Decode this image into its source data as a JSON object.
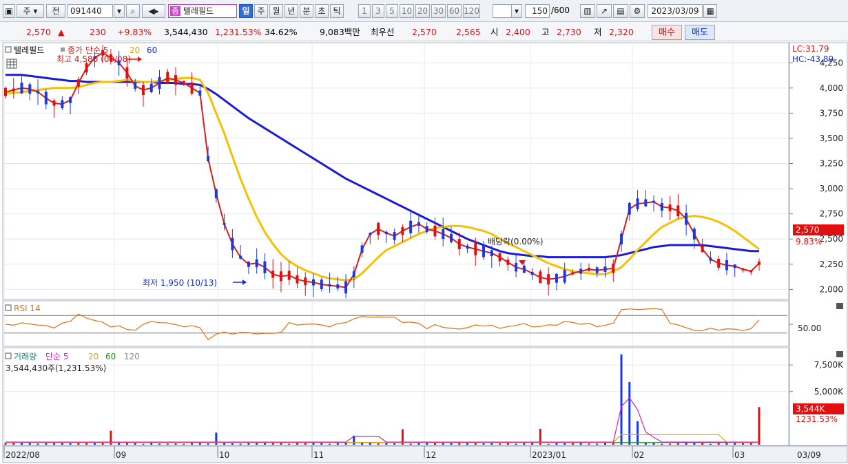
{
  "toolbar": {
    "period_label": "주",
    "period_caret": "▾",
    "ticker_prefix": "전",
    "ticker_code": "091440",
    "stock_badge": "종",
    "stock_name": "텔레필드",
    "timeframes": [
      "일",
      "주",
      "월",
      "년",
      "분",
      "초",
      "틱"
    ],
    "intervals": [
      "1",
      "3",
      "5",
      "10",
      "20",
      "30",
      "60",
      "120"
    ],
    "count_value": "150",
    "count_total": "/600",
    "date_value": "2023/03/09"
  },
  "quote": {
    "price": "2,570",
    "direction_arrow": "▲",
    "change": "230",
    "change_pct": "+9.83%",
    "volume": "3,544,430",
    "volume_ratio": "1,231.53%",
    "turnover_pct": "34.62%",
    "amount": "9,083백만",
    "best_bid_label": "최우선",
    "best_ask": "2,570",
    "best_bid": "2,565",
    "open_label": "시",
    "open": "2,400",
    "high_label": "고",
    "high": "2,730",
    "low_label": "저",
    "low": "2,320",
    "buy_button": "매수",
    "sell_button": "매도"
  },
  "price_pane": {
    "legend_name": "텔레필드",
    "legend_ma": "종가 단순 5",
    "legend_ma20": "20",
    "legend_ma60": "60",
    "lc_label": "LC:31.79",
    "hc_label": "HC:-43.89",
    "high_annotation": "최고 4,580 (09/08)",
    "low_annotation": "최저 1,950 (10/13)",
    "ex_dividend_annotation": "배당락(0.00%)",
    "current_price_tag": "2,570",
    "current_change_tag": "9.83%",
    "ma5_color": "#e01a1a",
    "ma20_color": "#f5c000",
    "ma60_color": "#1a1ad8"
  },
  "rsi_pane": {
    "legend": "RSI 14",
    "level_label": "50.00",
    "line_color": "#e07010"
  },
  "volume_pane": {
    "legend_name": "거래량",
    "legend_ma": "단순 5",
    "legend_ma20": "20",
    "legend_ma60": "60",
    "legend_ma120": "120",
    "current_label": "3,544,430주(1,231.53%)",
    "current_volume_tag": "3,544K",
    "current_ratio_tag": "1231.53%"
  },
  "chart_data": {
    "type": "candlestick",
    "price_axis_ticks": [
      "4,250",
      "4,000",
      "3,750",
      "3,500",
      "3,250",
      "3,000",
      "2,750",
      "2,500",
      "2,250",
      "2,000"
    ],
    "price_axis_values": [
      4250,
      4000,
      3750,
      3500,
      3250,
      3000,
      2750,
      2500,
      2250,
      2000
    ],
    "volume_axis_ticks": [
      "7,500K",
      "5,000K"
    ],
    "volume_axis_values": [
      7500,
      5000
    ],
    "x_labels": [
      "2022/08",
      "09",
      "10",
      "11",
      "12",
      "2023/01",
      "02",
      "03",
      "03/09"
    ],
    "series": [
      {
        "name": "5",
        "values": [
          3960,
          3980,
          4000,
          3990,
          3960,
          3900,
          3850,
          3840,
          3880,
          4050,
          4200,
          4300,
          4350,
          4300,
          4250,
          4150,
          4020,
          3980,
          4000,
          4050,
          4100,
          4080,
          4050,
          4000,
          3950,
          3300,
          2950,
          2650,
          2450,
          2320,
          2250,
          2260,
          2220,
          2150,
          2130,
          2140,
          2100,
          2080,
          2070,
          2050,
          2040,
          2030,
          2020,
          2150,
          2400,
          2550,
          2600,
          2560,
          2530,
          2580,
          2620,
          2650,
          2600,
          2580,
          2550,
          2510,
          2450,
          2420,
          2400,
          2380,
          2360,
          2320,
          2270,
          2220,
          2200,
          2160,
          2120,
          2100,
          2110,
          2130,
          2160,
          2180,
          2200,
          2190,
          2200,
          2210,
          2500,
          2800,
          2850,
          2860,
          2870,
          2820,
          2810,
          2780,
          2700,
          2550,
          2400,
          2300,
          2260,
          2240,
          2230,
          2200,
          2180,
          2260
        ]
      },
      {
        "name": "20",
        "values": [
          3950,
          3950,
          3960,
          3970,
          3980,
          3990,
          4000,
          4000,
          4000,
          4010,
          4030,
          4050,
          4060,
          4060,
          4070,
          4080,
          4070,
          4060,
          4060,
          4070,
          4080,
          4090,
          4100,
          4100,
          4080,
          3950,
          3750,
          3550,
          3320,
          3100,
          2900,
          2720,
          2570,
          2450,
          2350,
          2280,
          2230,
          2190,
          2160,
          2130,
          2110,
          2100,
          2090,
          2100,
          2160,
          2240,
          2320,
          2390,
          2430,
          2470,
          2510,
          2550,
          2580,
          2610,
          2620,
          2630,
          2630,
          2620,
          2600,
          2580,
          2550,
          2500,
          2460,
          2420,
          2380,
          2340,
          2300,
          2260,
          2230,
          2200,
          2180,
          2170,
          2160,
          2150,
          2150,
          2180,
          2220,
          2300,
          2390,
          2470,
          2550,
          2620,
          2660,
          2700,
          2720,
          2730,
          2720,
          2700,
          2670,
          2630,
          2580,
          2520,
          2460,
          2400
        ]
      },
      {
        "name": "60",
        "values": [
          4130,
          4130,
          4130,
          4120,
          4110,
          4100,
          4090,
          4080,
          4070,
          4070,
          4060,
          4060,
          4060,
          4060,
          4060,
          4060,
          4060,
          4060,
          4060,
          4050,
          4050,
          4050,
          4040,
          4040,
          4030,
          3990,
          3940,
          3880,
          3820,
          3760,
          3700,
          3650,
          3600,
          3550,
          3500,
          3450,
          3400,
          3350,
          3300,
          3250,
          3200,
          3150,
          3100,
          3060,
          3020,
          2980,
          2940,
          2900,
          2860,
          2820,
          2780,
          2740,
          2700,
          2660,
          2620,
          2580,
          2540,
          2500,
          2470,
          2440,
          2410,
          2380,
          2360,
          2350,
          2340,
          2330,
          2330,
          2320,
          2320,
          2320,
          2320,
          2320,
          2320,
          2320,
          2320,
          2330,
          2340,
          2360,
          2380,
          2400,
          2420,
          2430,
          2440,
          2440,
          2440,
          2440,
          2440,
          2430,
          2420,
          2410,
          2400,
          2390,
          2380,
          2380
        ]
      }
    ],
    "last_close": 2570,
    "last_volume_k": 3544,
    "ylim": [
      1900,
      4450
    ],
    "rsi_level": 50
  }
}
